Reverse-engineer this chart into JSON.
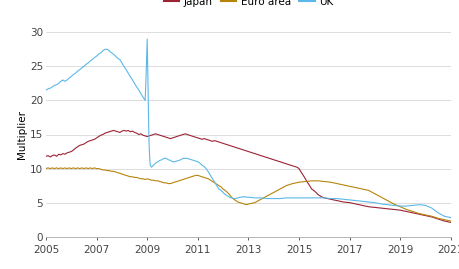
{
  "title": "",
  "ylabel": "Multiplier",
  "legend_labels": [
    "Japan",
    "Euro area",
    "UK"
  ],
  "legend_colors": [
    "#9b2335",
    "#b5850b",
    "#5bb8e8"
  ],
  "xlim": [
    2005.0,
    2021.0
  ],
  "ylim": [
    0,
    30
  ],
  "yticks": [
    0,
    5,
    10,
    15,
    20,
    25,
    30
  ],
  "xticks": [
    2005,
    2007,
    2009,
    2011,
    2013,
    2015,
    2017,
    2019,
    2021
  ],
  "background_color": "#ffffff",
  "grid_color": "#d0d0d0",
  "japan": {
    "x": [
      2005.0,
      2005.08,
      2005.17,
      2005.25,
      2005.33,
      2005.42,
      2005.5,
      2005.58,
      2005.67,
      2005.75,
      2005.83,
      2005.92,
      2006.0,
      2006.08,
      2006.17,
      2006.25,
      2006.33,
      2006.42,
      2006.5,
      2006.58,
      2006.67,
      2006.75,
      2006.83,
      2006.92,
      2007.0,
      2007.08,
      2007.17,
      2007.25,
      2007.33,
      2007.42,
      2007.5,
      2007.58,
      2007.67,
      2007.75,
      2007.83,
      2007.92,
      2008.0,
      2008.08,
      2008.17,
      2008.25,
      2008.33,
      2008.42,
      2008.5,
      2008.58,
      2008.67,
      2008.75,
      2008.83,
      2008.92,
      2009.0,
      2009.08,
      2009.17,
      2009.25,
      2009.33,
      2009.42,
      2009.5,
      2009.58,
      2009.67,
      2009.75,
      2009.83,
      2009.92,
      2010.0,
      2010.08,
      2010.17,
      2010.25,
      2010.33,
      2010.42,
      2010.5,
      2010.58,
      2010.67,
      2010.75,
      2010.83,
      2010.92,
      2011.0,
      2011.08,
      2011.17,
      2011.25,
      2011.33,
      2011.42,
      2011.5,
      2011.58,
      2011.67,
      2011.75,
      2011.83,
      2011.92,
      2012.0,
      2012.08,
      2012.17,
      2012.25,
      2012.33,
      2012.42,
      2012.5,
      2012.58,
      2012.67,
      2012.75,
      2012.83,
      2012.92,
      2013.0,
      2013.08,
      2013.17,
      2013.25,
      2013.33,
      2013.42,
      2013.5,
      2013.58,
      2013.67,
      2013.75,
      2013.83,
      2013.92,
      2014.0,
      2014.08,
      2014.17,
      2014.25,
      2014.33,
      2014.42,
      2014.5,
      2014.58,
      2014.67,
      2014.75,
      2014.83,
      2014.92,
      2015.0,
      2015.08,
      2015.17,
      2015.25,
      2015.33,
      2015.42,
      2015.5,
      2015.58,
      2015.67,
      2015.75,
      2015.83,
      2015.92,
      2016.0,
      2016.25,
      2016.5,
      2016.75,
      2017.0,
      2017.25,
      2017.5,
      2017.75,
      2018.0,
      2018.25,
      2018.5,
      2018.75,
      2019.0,
      2019.25,
      2019.5,
      2019.75,
      2020.0,
      2020.25,
      2020.5,
      2020.75,
      2021.0
    ],
    "y": [
      11.8,
      11.9,
      11.7,
      11.9,
      12.0,
      11.8,
      12.1,
      12.0,
      12.2,
      12.1,
      12.3,
      12.4,
      12.5,
      12.7,
      13.0,
      13.2,
      13.4,
      13.5,
      13.6,
      13.8,
      14.0,
      14.1,
      14.2,
      14.3,
      14.5,
      14.7,
      14.9,
      15.0,
      15.2,
      15.3,
      15.4,
      15.5,
      15.6,
      15.5,
      15.4,
      15.3,
      15.5,
      15.6,
      15.5,
      15.6,
      15.4,
      15.5,
      15.3,
      15.2,
      15.0,
      15.1,
      14.9,
      14.8,
      14.7,
      14.8,
      14.9,
      15.0,
      15.1,
      15.0,
      14.9,
      14.8,
      14.7,
      14.6,
      14.5,
      14.4,
      14.5,
      14.6,
      14.7,
      14.8,
      14.9,
      15.0,
      15.1,
      15.0,
      14.9,
      14.8,
      14.7,
      14.6,
      14.5,
      14.4,
      14.3,
      14.4,
      14.3,
      14.2,
      14.1,
      14.0,
      14.1,
      14.0,
      13.9,
      13.8,
      13.7,
      13.6,
      13.5,
      13.4,
      13.3,
      13.2,
      13.1,
      13.0,
      12.9,
      12.8,
      12.7,
      12.6,
      12.5,
      12.4,
      12.3,
      12.2,
      12.1,
      12.0,
      11.9,
      11.8,
      11.7,
      11.6,
      11.5,
      11.4,
      11.3,
      11.2,
      11.1,
      11.0,
      10.9,
      10.8,
      10.7,
      10.6,
      10.5,
      10.4,
      10.3,
      10.2,
      10.0,
      9.5,
      9.0,
      8.5,
      8.0,
      7.5,
      7.0,
      6.8,
      6.5,
      6.2,
      6.0,
      5.8,
      5.7,
      5.5,
      5.3,
      5.1,
      5.0,
      4.8,
      4.6,
      4.4,
      4.3,
      4.2,
      4.1,
      4.0,
      3.9,
      3.7,
      3.5,
      3.3,
      3.1,
      2.9,
      2.6,
      2.3,
      2.1
    ]
  },
  "euro_area": {
    "x": [
      2005.0,
      2005.08,
      2005.17,
      2005.25,
      2005.33,
      2005.42,
      2005.5,
      2005.58,
      2005.67,
      2005.75,
      2005.83,
      2005.92,
      2006.0,
      2006.08,
      2006.17,
      2006.25,
      2006.33,
      2006.42,
      2006.5,
      2006.58,
      2006.67,
      2006.75,
      2006.83,
      2006.92,
      2007.0,
      2007.08,
      2007.17,
      2007.25,
      2007.33,
      2007.42,
      2007.5,
      2007.58,
      2007.67,
      2007.75,
      2007.83,
      2007.92,
      2008.0,
      2008.08,
      2008.17,
      2008.25,
      2008.33,
      2008.42,
      2008.5,
      2008.58,
      2008.67,
      2008.75,
      2008.83,
      2008.92,
      2009.0,
      2009.08,
      2009.17,
      2009.25,
      2009.33,
      2009.42,
      2009.5,
      2009.58,
      2009.67,
      2009.75,
      2009.83,
      2009.92,
      2010.0,
      2010.08,
      2010.17,
      2010.25,
      2010.33,
      2010.42,
      2010.5,
      2010.58,
      2010.67,
      2010.75,
      2010.83,
      2010.92,
      2011.0,
      2011.08,
      2011.17,
      2011.25,
      2011.33,
      2011.42,
      2011.5,
      2011.58,
      2011.67,
      2011.75,
      2011.83,
      2011.92,
      2012.0,
      2012.08,
      2012.17,
      2012.25,
      2012.33,
      2012.42,
      2012.5,
      2012.58,
      2012.67,
      2012.75,
      2012.83,
      2012.92,
      2013.0,
      2013.25,
      2013.5,
      2013.75,
      2014.0,
      2014.25,
      2014.5,
      2014.75,
      2015.0,
      2015.25,
      2015.5,
      2015.75,
      2016.0,
      2016.25,
      2016.5,
      2016.75,
      2017.0,
      2017.25,
      2017.5,
      2017.75,
      2018.0,
      2018.25,
      2018.5,
      2018.75,
      2019.0,
      2019.25,
      2019.5,
      2019.75,
      2020.0,
      2020.25,
      2020.5,
      2020.75,
      2021.0
    ],
    "y": [
      10.0,
      10.1,
      10.0,
      10.1,
      10.0,
      10.1,
      10.0,
      10.1,
      10.0,
      10.1,
      10.0,
      10.1,
      10.0,
      10.1,
      10.0,
      10.1,
      10.0,
      10.1,
      10.0,
      10.1,
      10.0,
      10.1,
      10.0,
      10.1,
      10.0,
      10.0,
      9.9,
      9.8,
      9.8,
      9.7,
      9.7,
      9.6,
      9.6,
      9.5,
      9.4,
      9.3,
      9.2,
      9.1,
      9.0,
      8.9,
      8.8,
      8.8,
      8.7,
      8.7,
      8.6,
      8.5,
      8.5,
      8.4,
      8.5,
      8.4,
      8.3,
      8.3,
      8.2,
      8.2,
      8.1,
      8.0,
      7.9,
      7.9,
      7.8,
      7.8,
      7.9,
      8.0,
      8.1,
      8.2,
      8.3,
      8.4,
      8.5,
      8.6,
      8.7,
      8.8,
      8.9,
      9.0,
      9.0,
      8.9,
      8.8,
      8.7,
      8.6,
      8.5,
      8.3,
      8.1,
      7.9,
      7.7,
      7.5,
      7.3,
      7.0,
      6.8,
      6.5,
      6.2,
      5.8,
      5.5,
      5.3,
      5.1,
      5.0,
      4.9,
      4.8,
      4.7,
      4.8,
      5.0,
      5.5,
      6.0,
      6.5,
      7.0,
      7.5,
      7.8,
      8.0,
      8.1,
      8.2,
      8.2,
      8.1,
      8.0,
      7.8,
      7.6,
      7.4,
      7.2,
      7.0,
      6.8,
      6.3,
      5.8,
      5.3,
      4.8,
      4.4,
      4.0,
      3.7,
      3.4,
      3.2,
      3.0,
      2.7,
      2.5,
      2.3
    ]
  },
  "uk": {
    "x": [
      2005.0,
      2005.08,
      2005.17,
      2005.25,
      2005.33,
      2005.42,
      2005.5,
      2005.58,
      2005.67,
      2005.75,
      2005.83,
      2005.92,
      2006.0,
      2006.08,
      2006.17,
      2006.25,
      2006.33,
      2006.42,
      2006.5,
      2006.58,
      2006.67,
      2006.75,
      2006.83,
      2006.92,
      2007.0,
      2007.08,
      2007.17,
      2007.25,
      2007.33,
      2007.42,
      2007.5,
      2007.58,
      2007.67,
      2007.75,
      2007.83,
      2007.92,
      2008.0,
      2008.08,
      2008.17,
      2008.25,
      2008.33,
      2008.42,
      2008.5,
      2008.58,
      2008.67,
      2008.75,
      2008.83,
      2008.92,
      2008.96,
      2009.0,
      2009.02,
      2009.04,
      2009.06,
      2009.08,
      2009.1,
      2009.12,
      2009.17,
      2009.25,
      2009.33,
      2009.42,
      2009.5,
      2009.58,
      2009.67,
      2009.75,
      2009.83,
      2009.92,
      2010.0,
      2010.08,
      2010.17,
      2010.25,
      2010.33,
      2010.42,
      2010.5,
      2010.58,
      2010.67,
      2010.75,
      2010.83,
      2010.92,
      2011.0,
      2011.08,
      2011.17,
      2011.25,
      2011.33,
      2011.42,
      2011.5,
      2011.58,
      2011.67,
      2011.75,
      2011.83,
      2011.92,
      2012.0,
      2012.08,
      2012.17,
      2012.25,
      2012.33,
      2012.42,
      2012.5,
      2012.58,
      2012.67,
      2012.75,
      2012.83,
      2012.92,
      2013.0,
      2013.25,
      2013.5,
      2013.75,
      2014.0,
      2014.25,
      2014.5,
      2014.75,
      2015.0,
      2015.25,
      2015.5,
      2015.75,
      2016.0,
      2016.25,
      2016.5,
      2016.75,
      2017.0,
      2017.25,
      2017.5,
      2017.75,
      2018.0,
      2018.25,
      2018.5,
      2018.75,
      2019.0,
      2019.25,
      2019.5,
      2019.75,
      2020.0,
      2020.25,
      2020.5,
      2020.75,
      2021.0
    ],
    "y": [
      21.5,
      21.7,
      21.8,
      22.0,
      22.2,
      22.3,
      22.5,
      22.8,
      23.0,
      22.8,
      23.0,
      23.3,
      23.5,
      23.8,
      24.0,
      24.3,
      24.5,
      24.8,
      25.0,
      25.3,
      25.5,
      25.8,
      26.0,
      26.3,
      26.5,
      26.8,
      27.0,
      27.3,
      27.5,
      27.5,
      27.3,
      27.0,
      26.8,
      26.5,
      26.2,
      26.0,
      25.5,
      25.0,
      24.5,
      24.0,
      23.5,
      23.0,
      22.5,
      22.0,
      21.5,
      21.0,
      20.5,
      20.0,
      24.0,
      29.0,
      25.0,
      20.0,
      16.0,
      13.0,
      11.5,
      10.5,
      10.2,
      10.5,
      10.8,
      11.0,
      11.2,
      11.3,
      11.5,
      11.5,
      11.3,
      11.2,
      11.0,
      11.0,
      11.1,
      11.2,
      11.3,
      11.5,
      11.5,
      11.5,
      11.4,
      11.3,
      11.2,
      11.1,
      11.0,
      10.8,
      10.5,
      10.3,
      10.0,
      9.5,
      9.0,
      8.5,
      8.0,
      7.5,
      7.0,
      6.8,
      6.5,
      6.2,
      6.0,
      5.8,
      5.7,
      5.6,
      5.6,
      5.7,
      5.8,
      5.8,
      5.9,
      5.8,
      5.8,
      5.7,
      5.7,
      5.6,
      5.6,
      5.6,
      5.7,
      5.7,
      5.7,
      5.7,
      5.7,
      5.7,
      5.7,
      5.6,
      5.6,
      5.5,
      5.4,
      5.3,
      5.2,
      5.1,
      5.0,
      4.8,
      4.7,
      4.6,
      4.5,
      4.5,
      4.6,
      4.7,
      4.6,
      4.2,
      3.5,
      3.0,
      2.8
    ]
  }
}
